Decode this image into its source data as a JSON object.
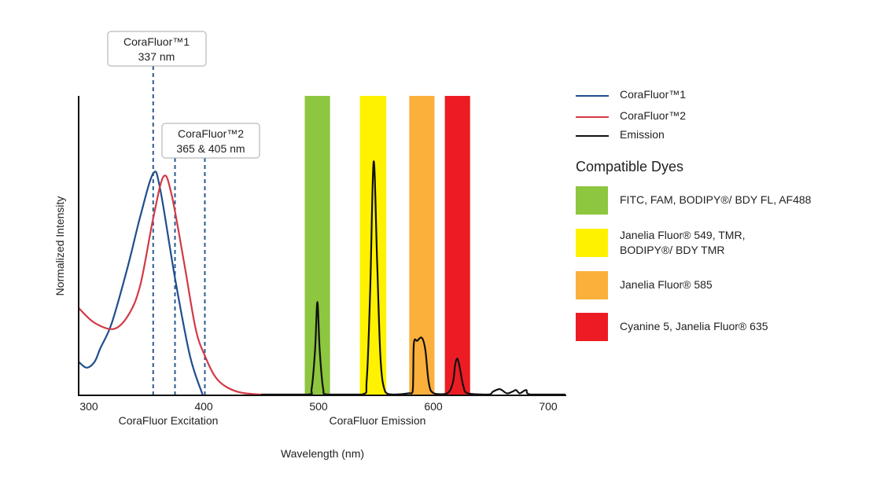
{
  "chart_data": {
    "type": "line",
    "xlabel": "Wavelength (nm)",
    "ylabel": "Normalized Intensity",
    "section_labels": [
      "CoraFluor Excitation",
      "CoraFluor Emission"
    ],
    "xlim": [
      291,
      715
    ],
    "ylim": [
      0,
      1
    ],
    "x_ticks": [
      300,
      400,
      500,
      600,
      700
    ],
    "grid": false,
    "legend_position": "right",
    "series": [
      {
        "name": "CoraFluor™1",
        "color": "#1f4e8c",
        "points": [
          [
            291,
            0.11
          ],
          [
            298,
            0.09
          ],
          [
            305,
            0.11
          ],
          [
            310,
            0.155
          ],
          [
            320,
            0.24
          ],
          [
            334,
            0.43
          ],
          [
            345,
            0.6
          ],
          [
            356,
            0.74
          ],
          [
            362,
            0.69
          ],
          [
            375,
            0.39
          ],
          [
            388,
            0.13
          ],
          [
            399,
            0
          ]
        ]
      },
      {
        "name": "CoraFluor™2",
        "color": "#d23a45",
        "points": [
          [
            291,
            0.29
          ],
          [
            305,
            0.24
          ],
          [
            322,
            0.22
          ],
          [
            335,
            0.27
          ],
          [
            345,
            0.37
          ],
          [
            356,
            0.59
          ],
          [
            365,
            0.73
          ],
          [
            372,
            0.67
          ],
          [
            383,
            0.44
          ],
          [
            393,
            0.22
          ],
          [
            401,
            0.13
          ],
          [
            410,
            0.06
          ],
          [
            420,
            0.025
          ],
          [
            433,
            0.006
          ],
          [
            450,
            0
          ]
        ]
      },
      {
        "name": "Emission",
        "color": "#111111",
        "points": [
          [
            450,
            0
          ],
          [
            490,
            0
          ],
          [
            494,
            0.02
          ],
          [
            497,
            0.15
          ],
          [
            499,
            0.31
          ],
          [
            501,
            0.15
          ],
          [
            504,
            0.02
          ],
          [
            508,
            0
          ],
          [
            538,
            0
          ],
          [
            542,
            0.05
          ],
          [
            545,
            0.35
          ],
          [
            548,
            0.78
          ],
          [
            551,
            0.45
          ],
          [
            554,
            0.12
          ],
          [
            558,
            0.01
          ],
          [
            565,
            0
          ],
          [
            578,
            0.004
          ],
          [
            582,
            0.01
          ],
          [
            583,
            0.17
          ],
          [
            586,
            0.18
          ],
          [
            590,
            0.19
          ],
          [
            593,
            0.15
          ],
          [
            596,
            0.04
          ],
          [
            600,
            0.005
          ],
          [
            612,
            0.004
          ],
          [
            617,
            0.04
          ],
          [
            619,
            0.1
          ],
          [
            621,
            0.12
          ],
          [
            623,
            0.09
          ],
          [
            626,
            0.03
          ],
          [
            630,
            0.004
          ],
          [
            648,
            0
          ],
          [
            652,
            0.01
          ],
          [
            658,
            0.018
          ],
          [
            664,
            0.004
          ],
          [
            669,
            0.01
          ],
          [
            672,
            0.015
          ],
          [
            675,
            0.004
          ],
          [
            678,
            0.01
          ],
          [
            681,
            0.015
          ],
          [
            685,
            0
          ],
          [
            715,
            0
          ]
        ]
      }
    ],
    "excitation_lines": [
      356,
      375,
      401
    ],
    "annotations": [
      {
        "line1": "CoraFluor™1",
        "line2": "337 nm"
      },
      {
        "line1": "CoraFluor™2",
        "line2": "365 & 405 nm"
      }
    ],
    "dye_bands": [
      {
        "range": [
          488,
          510
        ],
        "color": "#8dc63f",
        "label": "FITC, FAM, BODIPY®/ BDY FL, AF488"
      },
      {
        "range": [
          536,
          559
        ],
        "color": "#fff200",
        "label": "Janelia Fluor® 549, TMR, BODIPY®/ BDY TMR"
      },
      {
        "range": [
          579,
          601
        ],
        "color": "#fbb03b",
        "label": "Janelia Fluor® 585"
      },
      {
        "range": [
          610,
          632
        ],
        "color": "#ed1c24",
        "label": "Cyanine 5, Janelia Fluor® 635"
      }
    ],
    "dyes_title": "Compatible Dyes"
  }
}
